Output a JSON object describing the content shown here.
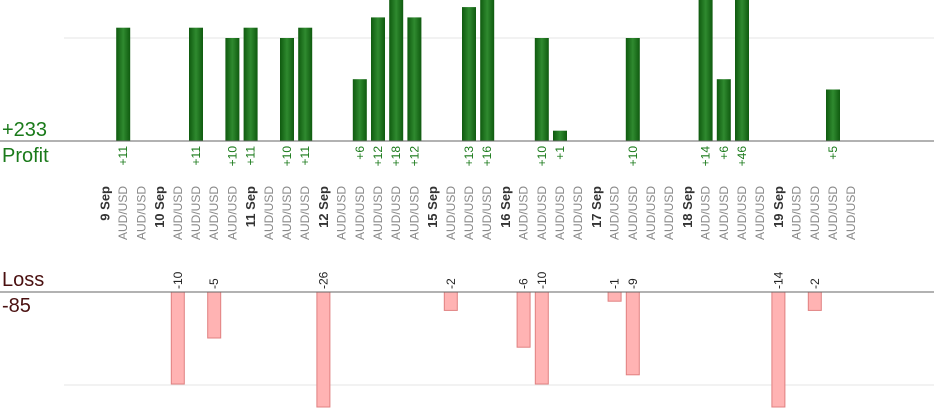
{
  "summary": {
    "profit_total": "+233",
    "profit_label": "Profit",
    "loss_label": "Loss",
    "loss_total": "-85"
  },
  "colors": {
    "profit_bar_dark": "#0f5a0f",
    "profit_bar_light": "#2f8a2f",
    "profit_text": "#1a7a1a",
    "loss_bar": "#ffb3b3",
    "loss_bar_edge": "#e08080",
    "loss_text": "#222222",
    "pair_text": "#888888",
    "date_text": "#333333"
  },
  "chart_data": {
    "type": "bar",
    "pair": "AUD/USD",
    "categories": [
      "9 Sep",
      "AUD/USD",
      "AUD/USD",
      "10 Sep",
      "AUD/USD",
      "AUD/USD",
      "AUD/USD",
      "AUD/USD",
      "11 Sep",
      "AUD/USD",
      "AUD/USD",
      "AUD/USD",
      "12 Sep",
      "AUD/USD",
      "AUD/USD",
      "AUD/USD",
      "AUD/USD",
      "AUD/USD",
      "15 Sep",
      "AUD/USD",
      "AUD/USD",
      "AUD/USD",
      "16 Sep",
      "AUD/USD",
      "AUD/USD",
      "AUD/USD",
      "AUD/USD",
      "17 Sep",
      "AUD/USD",
      "AUD/USD",
      "AUD/USD",
      "AUD/USD",
      "18 Sep",
      "AUD/USD",
      "AUD/USD",
      "AUD/USD",
      "AUD/USD",
      "19 Sep",
      "AUD/USD",
      "AUD/USD",
      "AUD/USD",
      "AUD/USD"
    ],
    "profit": [
      null,
      11,
      null,
      null,
      null,
      11,
      null,
      10,
      11,
      null,
      10,
      11,
      null,
      null,
      6,
      12,
      18,
      12,
      null,
      null,
      13,
      16,
      null,
      null,
      10,
      1,
      null,
      null,
      null,
      10,
      null,
      null,
      null,
      14,
      6,
      46,
      null,
      null,
      null,
      null,
      5,
      null
    ],
    "loss": [
      null,
      null,
      null,
      null,
      -10,
      null,
      -5,
      null,
      null,
      null,
      null,
      null,
      -26,
      null,
      null,
      null,
      null,
      null,
      null,
      -2,
      null,
      null,
      null,
      -6,
      -10,
      null,
      null,
      null,
      -1,
      -9,
      null,
      null,
      null,
      null,
      null,
      null,
      null,
      -14,
      null,
      -2,
      null,
      null
    ],
    "profit_labels": [
      "",
      "+11",
      "",
      "",
      "",
      "+11",
      "",
      "+10",
      "+11",
      "",
      "+10",
      "+11",
      "",
      "",
      "+6",
      "+12",
      "+18",
      "+12",
      "",
      "",
      "+13",
      "+16",
      "",
      "",
      "+10",
      "+1",
      "",
      "",
      "",
      "+10",
      "",
      "",
      "",
      "+14",
      "+6",
      "+46",
      "",
      "",
      "",
      "",
      "+5",
      ""
    ],
    "loss_labels": [
      "",
      "",
      "",
      "",
      "-10",
      "",
      "-5",
      "",
      "",
      "",
      "",
      "",
      "-26",
      "",
      "",
      "",
      "",
      "",
      "",
      "-2",
      "",
      "",
      "",
      "-6",
      "-10",
      "",
      "",
      "",
      "-1",
      "-9",
      "",
      "",
      "",
      "",
      "",
      "",
      "",
      "-14",
      "",
      "-2",
      "",
      ""
    ],
    "profit_ylim": [
      0,
      12
    ],
    "loss_ylim": [
      -12,
      0
    ],
    "grid": true
  }
}
